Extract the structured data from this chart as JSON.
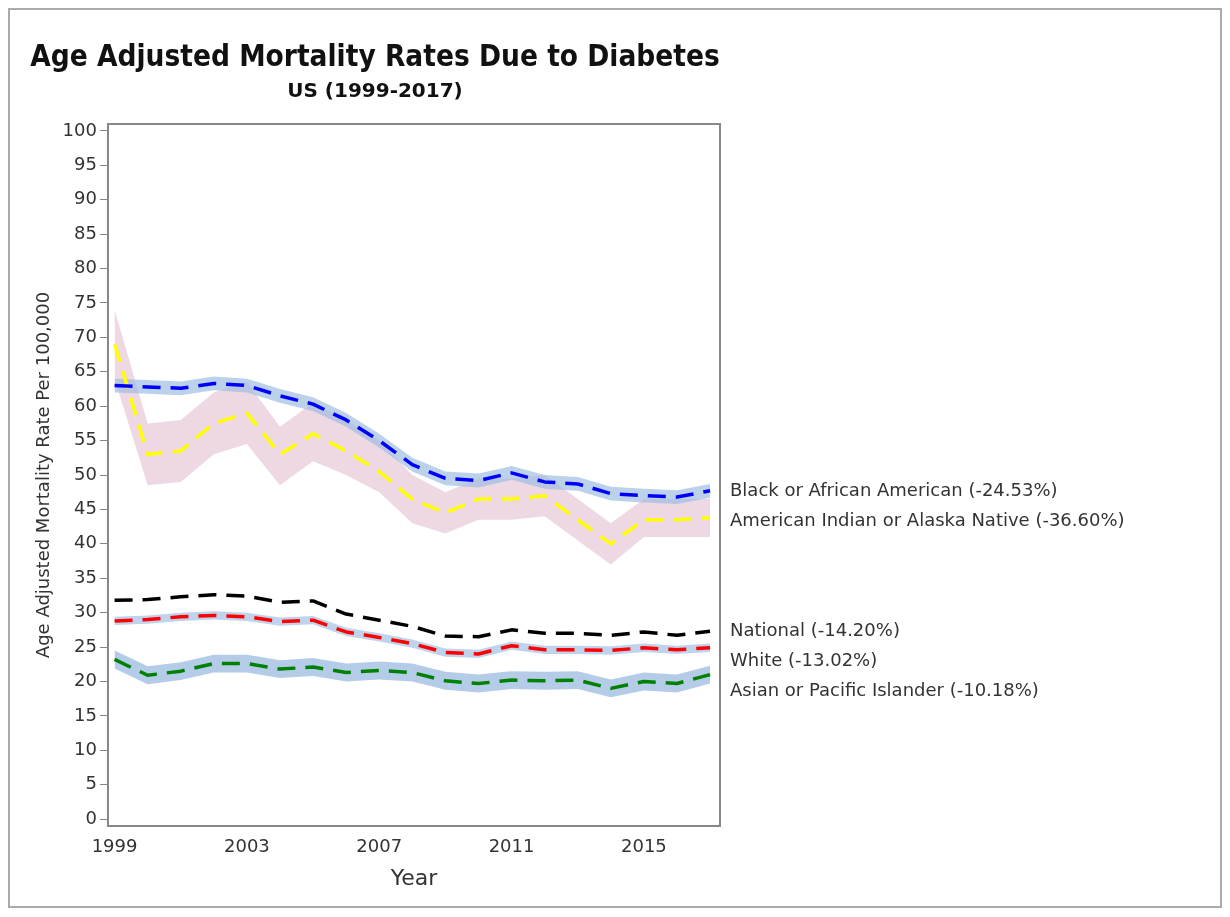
{
  "chart_data": {
    "type": "line",
    "title": "Age Adjusted Mortality Rates Due to Diabetes",
    "subtitle": "US (1999-2017)",
    "xlabel": "Year",
    "ylabel": "Age Adjusted Mortality Rate Per 100,000",
    "x": [
      1999,
      2000,
      2001,
      2002,
      2003,
      2004,
      2005,
      2006,
      2007,
      2008,
      2009,
      2010,
      2011,
      2012,
      2013,
      2014,
      2015,
      2016,
      2017
    ],
    "xlim": [
      1998.8,
      2017.3
    ],
    "xticks": [
      1999,
      2003,
      2007,
      2011,
      2015
    ],
    "ylim": [
      -1,
      101
    ],
    "yticks": [
      0,
      5,
      10,
      15,
      20,
      25,
      30,
      35,
      40,
      45,
      50,
      55,
      60,
      65,
      70,
      75,
      80,
      85,
      90,
      95,
      100
    ],
    "grid": false,
    "legend": false,
    "marker": "none",
    "line_style": "dashed",
    "series": [
      {
        "name": "Black or African American (-24.53%)",
        "color": "#0000ff",
        "values": [
          63,
          62.8,
          62.6,
          63.3,
          63,
          61.5,
          60.3,
          58,
          55,
          51.5,
          49.5,
          49.2,
          50.3,
          49,
          48.7,
          47.3,
          47,
          46.8,
          47.7
        ],
        "lower": [
          62,
          61.8,
          61.6,
          62.3,
          62,
          60.5,
          59.3,
          57,
          54,
          50.5,
          48.5,
          48.2,
          49.3,
          48,
          47.7,
          46.3,
          46,
          45.8,
          46.7
        ],
        "upper": [
          64,
          63.8,
          63.6,
          64.3,
          64,
          62.5,
          61.3,
          59,
          56,
          52.5,
          50.5,
          50.2,
          51.3,
          50,
          49.7,
          48.3,
          48,
          47.8,
          48.7
        ]
      },
      {
        "name": "American Indian or Alaska Native (-36.60%)",
        "color": "#ffff00",
        "values": [
          69,
          53,
          53.5,
          57.5,
          59,
          53,
          56,
          53.5,
          50.5,
          46.5,
          44.5,
          46.5,
          46.5,
          47,
          43.5,
          40,
          43.5,
          43.5,
          43.8
        ],
        "lower": [
          64,
          48.5,
          49,
          53,
          54.5,
          48.5,
          52,
          50,
          47.5,
          43,
          41.5,
          43.5,
          43.5,
          44,
          40.5,
          37,
          41,
          41,
          41
        ],
        "upper": [
          74,
          57.5,
          58,
          62,
          63.5,
          57,
          60.5,
          58,
          55,
          50,
          47.5,
          49.5,
          49.5,
          50,
          46.5,
          43,
          46.5,
          46.5,
          46.5
        ]
      },
      {
        "name": "National (-14.20%)",
        "color": "#000000",
        "values": [
          31.8,
          31.9,
          32.3,
          32.6,
          32.4,
          31.5,
          31.7,
          29.8,
          28.9,
          28,
          26.6,
          26.5,
          27.5,
          27,
          27,
          26.7,
          27.2,
          26.7,
          27.3
        ]
      },
      {
        "name": "White (-13.02%)",
        "color": "#ff0000",
        "values": [
          28.8,
          29,
          29.4,
          29.6,
          29.4,
          28.7,
          28.9,
          27.2,
          26.4,
          25.5,
          24.2,
          24,
          25.2,
          24.6,
          24.6,
          24.5,
          24.9,
          24.6,
          24.9
        ],
        "lower": [
          28.2,
          28.4,
          28.8,
          29,
          28.8,
          28.1,
          28.3,
          26.6,
          25.8,
          24.9,
          23.6,
          23.4,
          24.6,
          24,
          24,
          23.9,
          24.3,
          24,
          24.3
        ],
        "upper": [
          29.4,
          29.6,
          30,
          30.2,
          30,
          29.3,
          29.5,
          27.8,
          27,
          26.1,
          24.8,
          24.6,
          25.8,
          25.2,
          25.2,
          25.1,
          25.5,
          25.2,
          25.5
        ]
      },
      {
        "name": "Asian or Pacific Islander (-10.18%)",
        "color": "#008000",
        "values": [
          23.2,
          20.9,
          21.5,
          22.6,
          22.6,
          21.8,
          22.1,
          21.3,
          21.6,
          21.3,
          20.1,
          19.7,
          20.2,
          20.1,
          20.2,
          19,
          20,
          19.7,
          21
        ],
        "lower": [
          21.9,
          19.6,
          20.2,
          21.3,
          21.3,
          20.5,
          20.8,
          20,
          20.3,
          20,
          18.8,
          18.4,
          18.9,
          18.8,
          18.9,
          17.7,
          18.7,
          18.4,
          19.7
        ],
        "upper": [
          24.5,
          22.2,
          22.8,
          23.9,
          23.9,
          23.1,
          23.4,
          22.6,
          22.9,
          22.6,
          21.4,
          21,
          21.5,
          21.4,
          21.5,
          20.3,
          21.3,
          21,
          22.3
        ]
      }
    ]
  }
}
